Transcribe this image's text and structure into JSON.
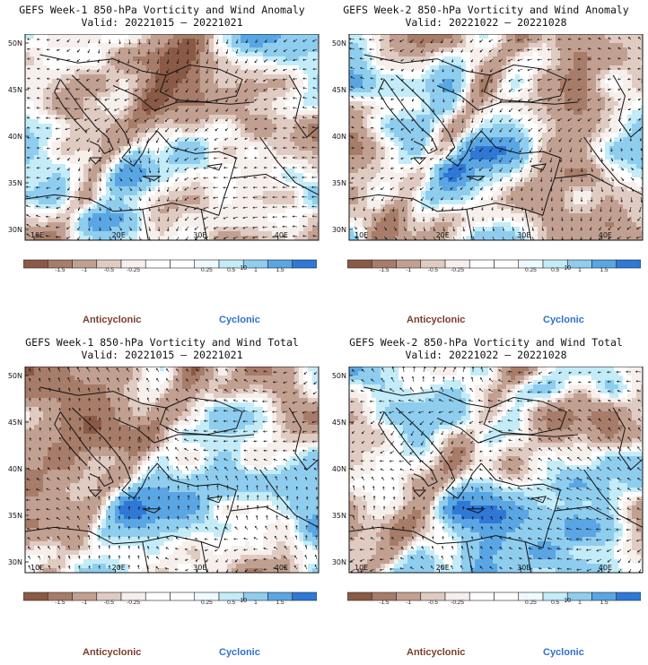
{
  "panels": [
    {
      "title": "GEFS Week-1 850-hPa Vorticity and Wind Anomaly",
      "valid": "Valid: 20221015 – 20221021"
    },
    {
      "title": "GEFS Week-2 850-hPa Vorticity and Wind Anomaly",
      "valid": "Valid: 20221022 – 20221028"
    },
    {
      "title": "GEFS Week-1 850-hPa Vorticity and Wind Total",
      "valid": "Valid: 20221015 – 20221021"
    },
    {
      "title": "GEFS Week-2 850-hPa Vorticity and Wind Total",
      "valid": "Valid: 20221022 – 20221028"
    }
  ],
  "lat_labels": [
    "50N",
    "45N",
    "40N",
    "35N",
    "30N"
  ],
  "lon_labels": [
    "10E",
    "20E",
    "30E",
    "40E"
  ],
  "colorbar": {
    "colors": [
      "#8a5a46",
      "#a77c69",
      "#c2a091",
      "#e0cbc2",
      "#f6efeb",
      "#ffffff",
      "#ffffff",
      "#eefaff",
      "#c3ecf8",
      "#8fcdef",
      "#5aa6e4",
      "#2f78d6"
    ],
    "tick_labels": [
      "-1.5",
      "-1",
      "-0.5",
      "-0.25",
      "0.25",
      "0.5",
      "1",
      "1.5"
    ],
    "inline_label": "10"
  },
  "captions": {
    "anticyclonic": "Anticyclonic",
    "cyclonic": "Cyclonic",
    "anticyclonic_color": "#7a3e2c",
    "cyclonic_color": "#2f6fd1"
  }
}
